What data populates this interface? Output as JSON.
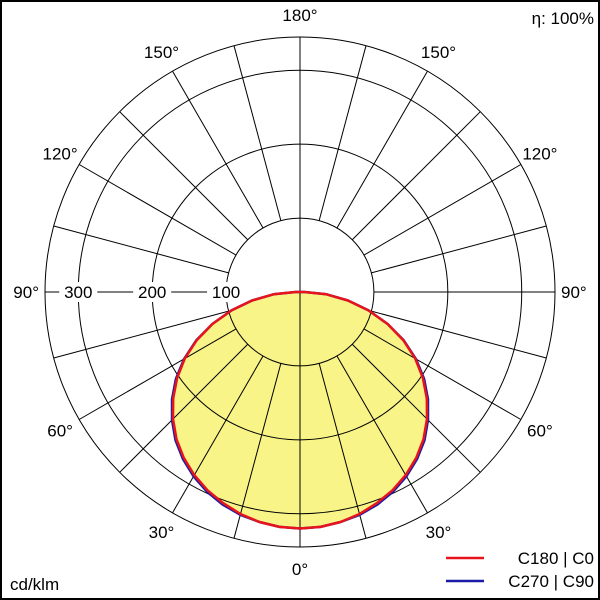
{
  "chart_data": {
    "type": "polar",
    "efficiency_label": "η: 100%",
    "unit_label": "cd/klm",
    "radial_ticks": [
      100,
      200,
      300
    ],
    "radial_max": 345,
    "spoke_step_deg": 15,
    "angle_labels": [
      {
        "deg": 0,
        "text": "0°"
      },
      {
        "deg": 30,
        "text": "30°"
      },
      {
        "deg": -30,
        "text": "30°"
      },
      {
        "deg": 60,
        "text": "60°"
      },
      {
        "deg": -60,
        "text": "60°"
      },
      {
        "deg": 90,
        "text": "90°"
      },
      {
        "deg": -90,
        "text": "90°"
      },
      {
        "deg": 120,
        "text": "120°"
      },
      {
        "deg": -120,
        "text": "120°"
      },
      {
        "deg": 150,
        "text": "150°"
      },
      {
        "deg": -150,
        "text": "150°"
      },
      {
        "deg": 180,
        "text": "180°"
      }
    ],
    "series": [
      {
        "name": "C180 | C0",
        "color": "#e8141c",
        "angles": [
          0,
          5,
          10,
          15,
          20,
          25,
          30,
          35,
          40,
          45,
          50,
          55,
          60,
          65,
          70,
          75,
          80,
          85,
          90
        ],
        "values": [
          320,
          319,
          316,
          311,
          304,
          296,
          286,
          274,
          260,
          243,
          224,
          203,
          180,
          154,
          126,
          96,
          66,
          36,
          6
        ]
      },
      {
        "name": "C270 | C90",
        "color": "#1a1aa8",
        "angles": [
          0,
          5,
          10,
          15,
          20,
          25,
          30,
          35,
          40,
          45,
          50,
          55,
          60,
          65,
          70,
          75,
          80,
          85,
          90
        ],
        "values": [
          320,
          319,
          316,
          312,
          306,
          298,
          288,
          276,
          262,
          245,
          226,
          205,
          181,
          155,
          126,
          96,
          66,
          36,
          6
        ]
      }
    ],
    "fill_color": "#f8f488"
  }
}
